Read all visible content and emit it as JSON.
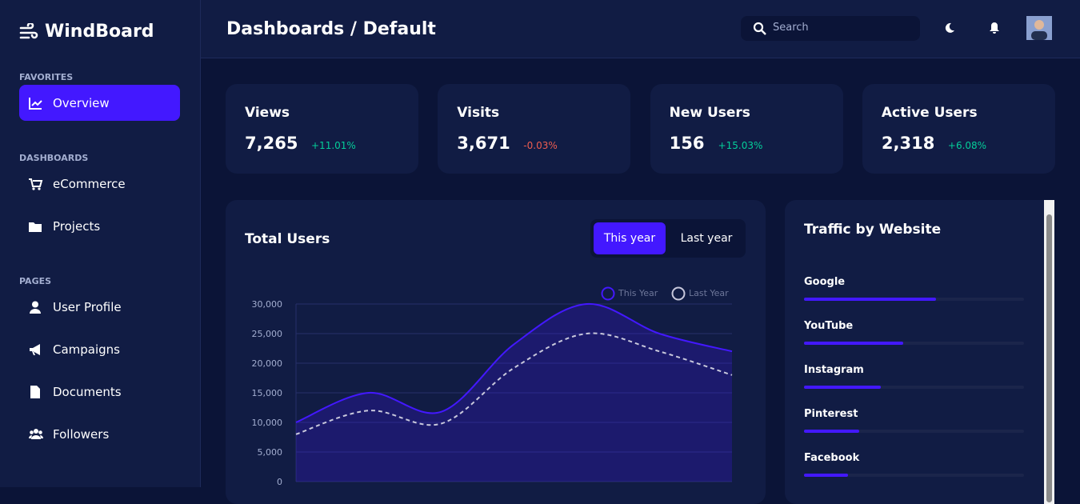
{
  "brand": "WindBoard",
  "sidebar": {
    "sections": [
      {
        "title": "FAVORITES",
        "items": [
          "Overview"
        ]
      },
      {
        "title": "DASHBOARDS",
        "items": [
          "eCommerce",
          "Projects"
        ]
      },
      {
        "title": "PAGES",
        "items": [
          "User Profile",
          "Campaigns",
          "Documents",
          "Followers"
        ]
      }
    ]
  },
  "header": {
    "title": "Dashboards / Default",
    "search_placeholder": "Search"
  },
  "stats": [
    {
      "label": "Views",
      "value": "7,265",
      "change": "+11.01%"
    },
    {
      "label": "Visits",
      "value": "3,671",
      "change": "-0.03%"
    },
    {
      "label": "New Users",
      "value": "156",
      "change": "+15.03%"
    },
    {
      "label": "Active Users",
      "value": "2,318",
      "change": "+6.08%"
    }
  ],
  "total_users": {
    "title": "Total Users",
    "toggle": [
      "This year",
      "Last year"
    ],
    "chart_data": {
      "type": "area",
      "categories": [
        null,
        null,
        null,
        null,
        null,
        null,
        null
      ],
      "series": [
        {
          "name": "This Year",
          "color": "#4318ff",
          "values": [
            10000,
            15000,
            11800,
            23200,
            30000,
            25000,
            22000
          ]
        },
        {
          "name": "Last Year",
          "color": "#c8c8dc",
          "values": [
            8000,
            12000,
            9800,
            19200,
            25000,
            22000,
            18000
          ]
        }
      ],
      "ylim": [
        0,
        30000
      ],
      "yticks": [
        0,
        {
          "value": 5000,
          "label": "5,000"
        },
        {
          "value": 10000,
          "label": "10,000"
        },
        {
          "value": 15000,
          "label": "15,000"
        },
        {
          "value": 20000,
          "label": "20,000"
        },
        {
          "value": 25000,
          "label": "25,000"
        },
        {
          "value": 30000,
          "label": "30,000"
        }
      ],
      "grid": true,
      "legend": "top-right"
    }
  },
  "traffic": {
    "title": "Traffic by Website",
    "sites": [
      {
        "name": "Google",
        "value": 60
      },
      {
        "name": "YouTube",
        "value": 45
      },
      {
        "name": "Instagram",
        "value": 35
      },
      {
        "name": "Pinterest",
        "value": 25
      },
      {
        "name": "Facebook",
        "value": 20
      }
    ]
  }
}
